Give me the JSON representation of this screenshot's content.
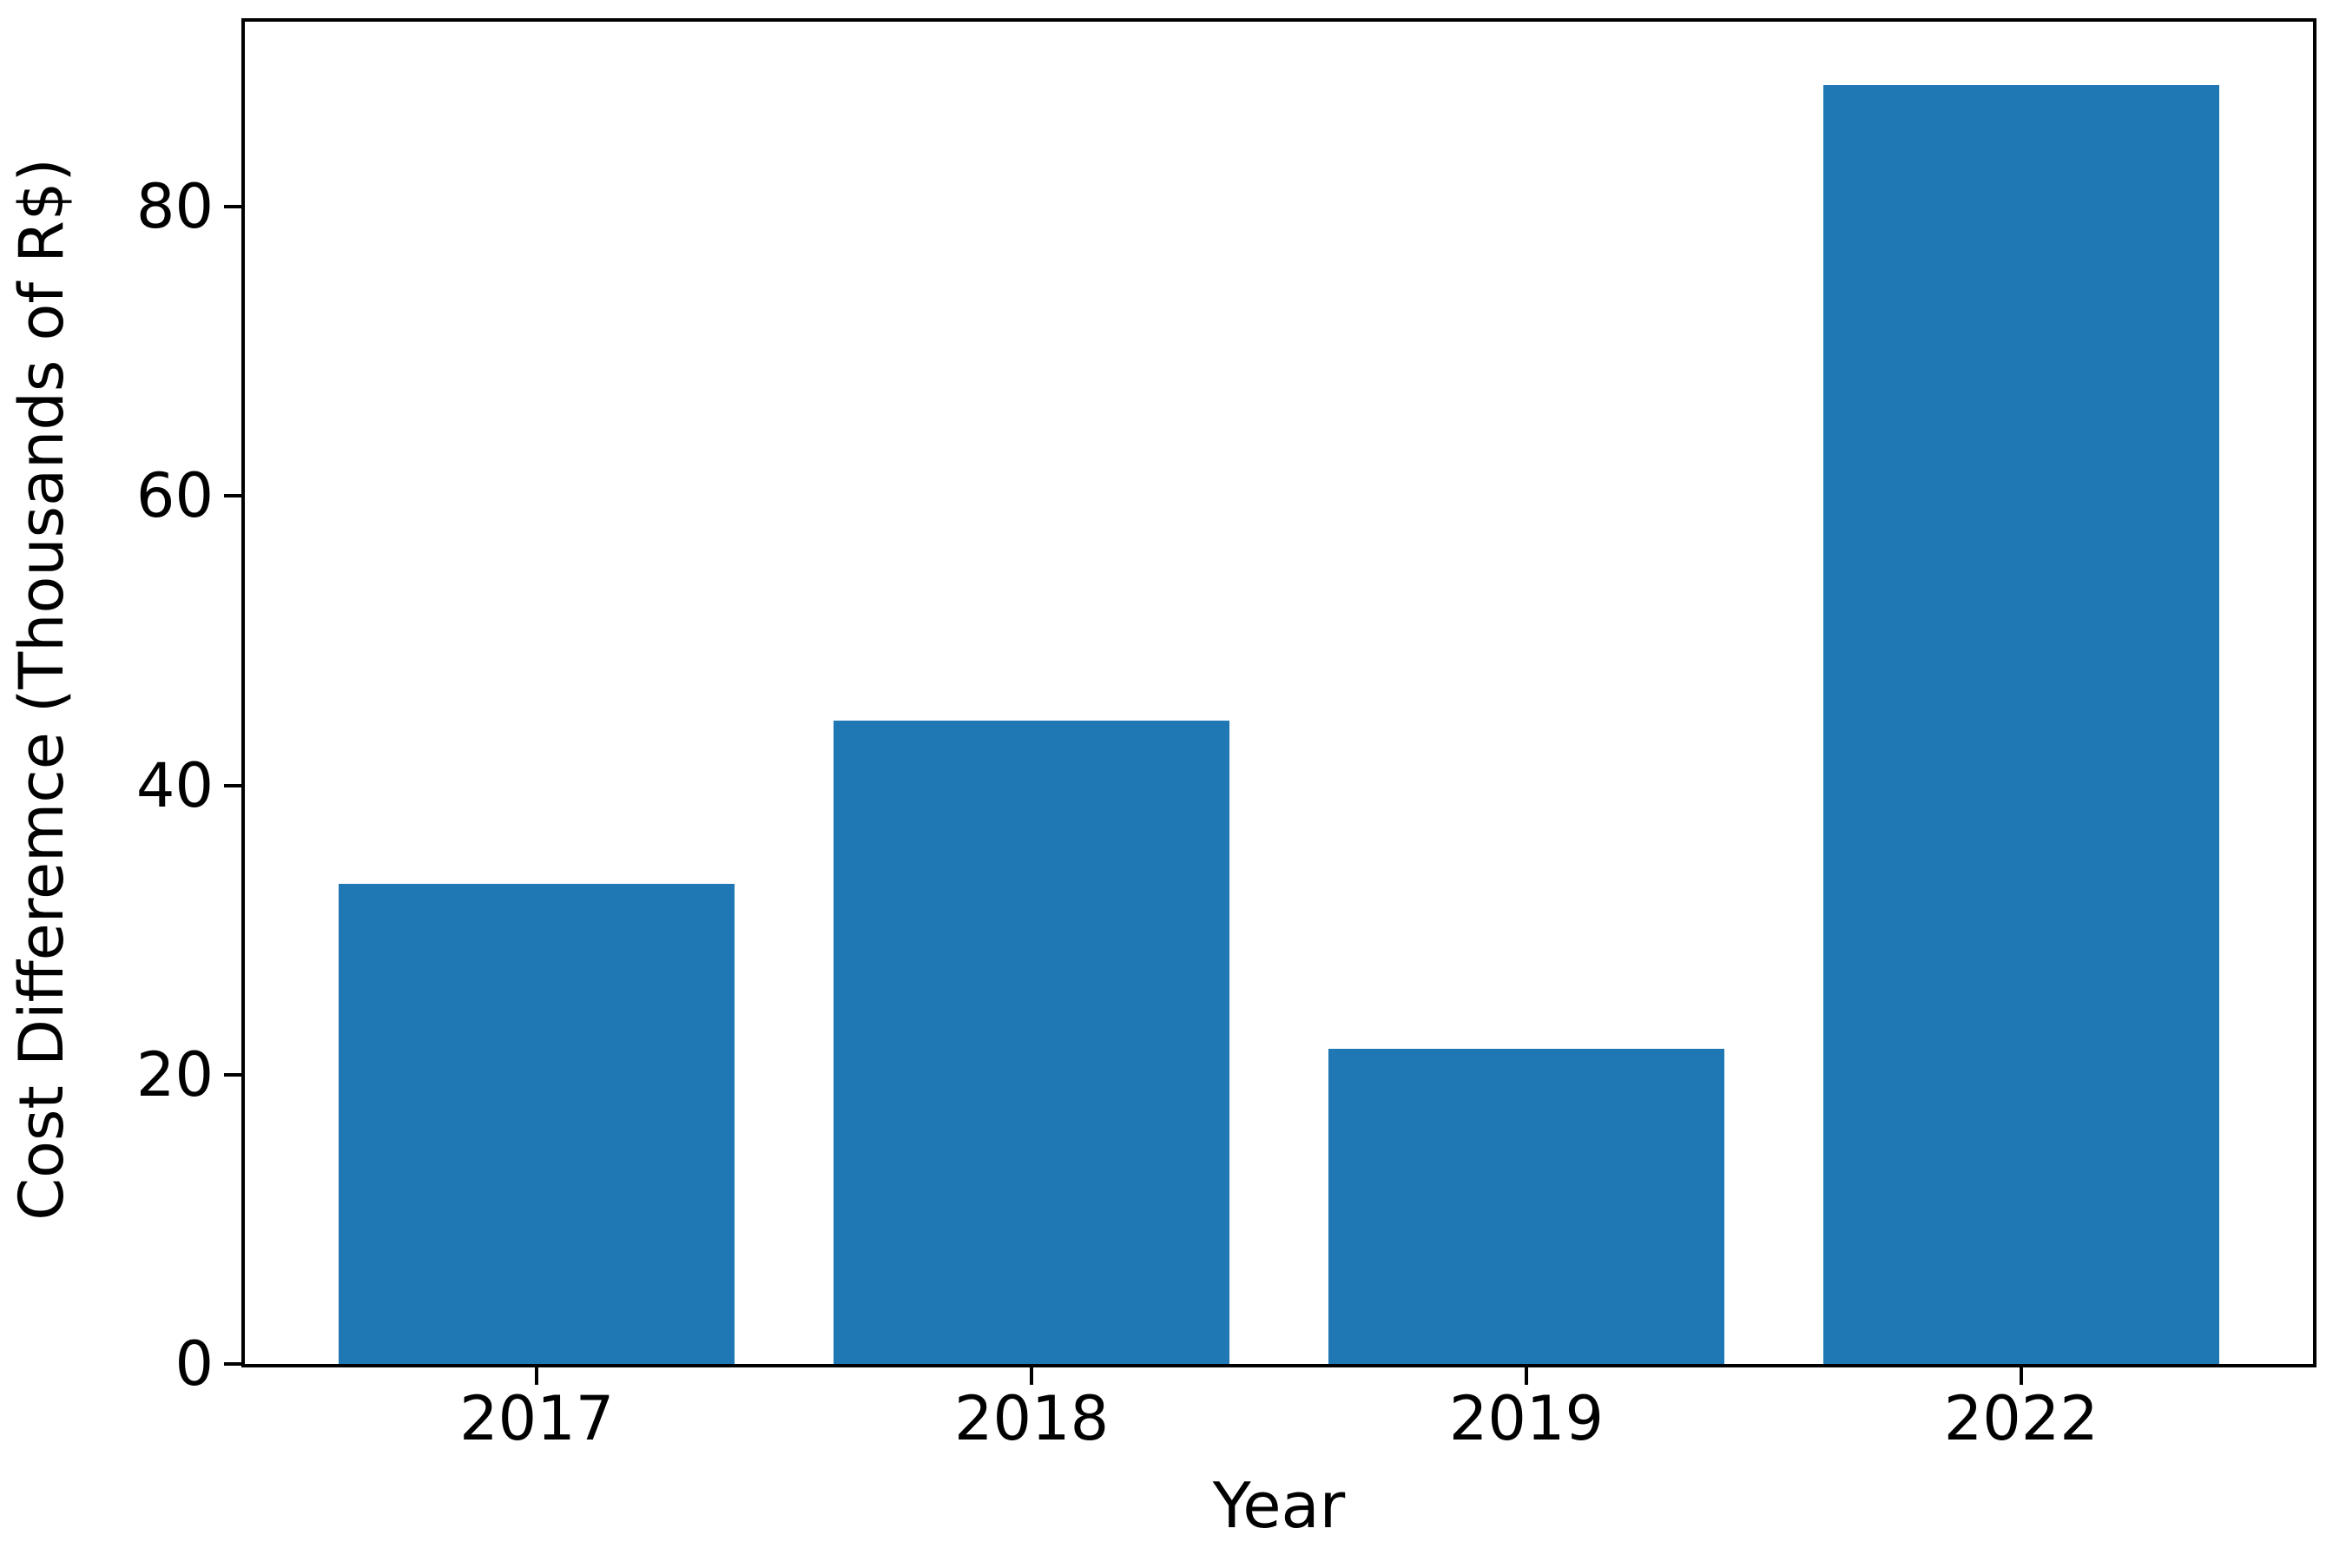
{
  "figure": {
    "background": "#ffffff",
    "axis_color": "#000000",
    "bar_color": "#1f77b4"
  },
  "chart_data": {
    "type": "bar",
    "title": "",
    "xlabel": "Year",
    "ylabel": "Cost Differemce (Thousands of R$)",
    "categories": [
      "2017",
      "2018",
      "2019",
      "2022"
    ],
    "values": [
      33.2,
      44.5,
      21.8,
      88.4
    ],
    "yticks": [
      0,
      20,
      40,
      60,
      80
    ],
    "ylim": [
      0,
      92.8
    ],
    "grid": false,
    "legend": null,
    "bar_color": "#1f77b4",
    "frame": "full-box"
  }
}
